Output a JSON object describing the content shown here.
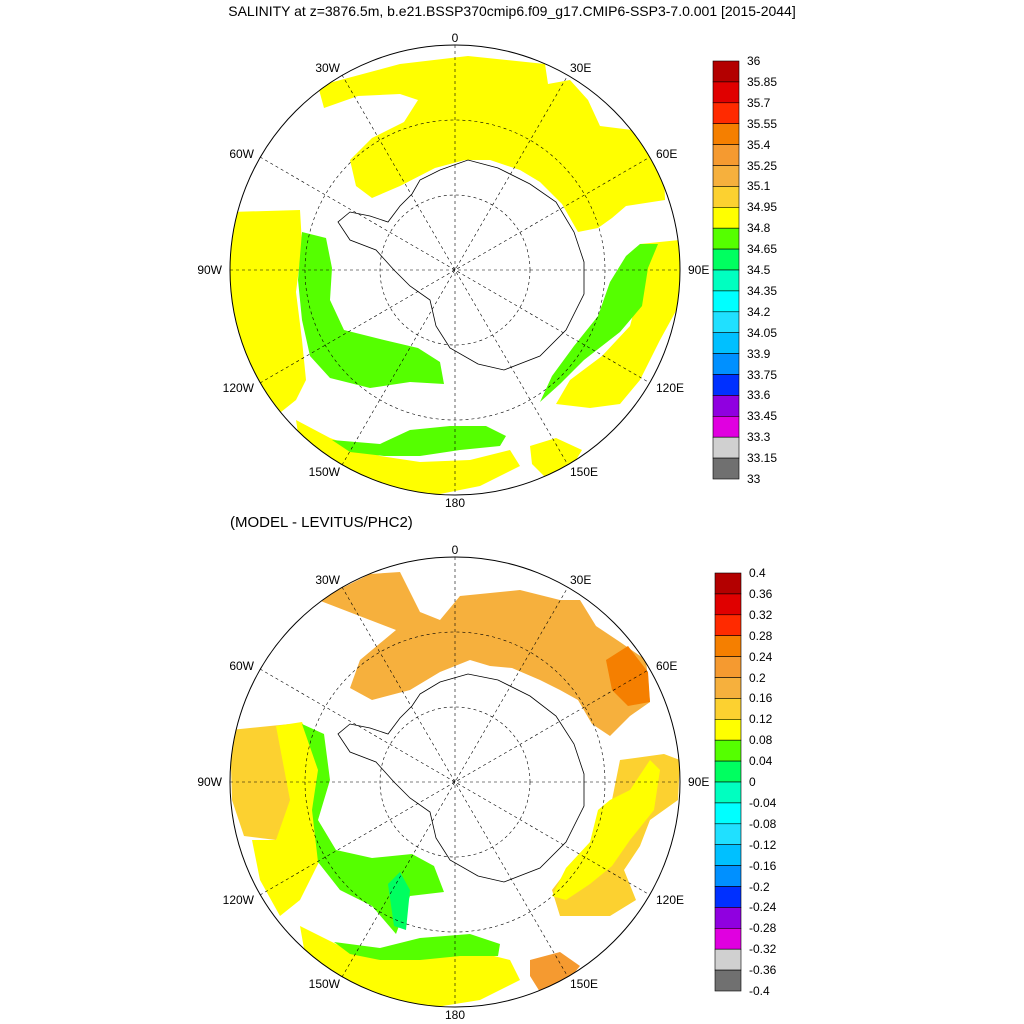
{
  "top_title": "SALINITY at z=3876.5m, b.e21.BSSP370cmip6.f09_g17.CMIP6-SSP3-7.0.001 [2015-2044]",
  "bottom_title": "(MODEL - LEVITUS/PHC2)",
  "longitude_labels": {
    "lon_0": "0",
    "lon_30w": "30W",
    "lon_30e": "30E",
    "lon_60w": "60W",
    "lon_60e": "60E",
    "lon_90w": "90W",
    "lon_90e": "90E",
    "lon_120w": "120W",
    "lon_120e": "120E",
    "lon_150w": "150W",
    "lon_150e": "150E",
    "lon_180": "180"
  },
  "colorbar_top": {
    "labels": [
      "36",
      "35.85",
      "35.7",
      "35.55",
      "35.4",
      "35.25",
      "35.1",
      "34.95",
      "34.8",
      "34.65",
      "34.5",
      "34.35",
      "34.2",
      "34.05",
      "33.9",
      "33.75",
      "33.6",
      "33.45",
      "33.3",
      "33.15",
      "33"
    ],
    "colors": [
      "#b30000",
      "#e00000",
      "#ff2a00",
      "#f57f00",
      "#f59a30",
      "#f6b03d",
      "#fcd130",
      "#ffff00",
      "#55ff00",
      "#00ff60",
      "#00ffc0",
      "#00ffff",
      "#20e0ff",
      "#00c0ff",
      "#0090ff",
      "#0030ff",
      "#9000e0",
      "#e000e0",
      "#d0d0d0",
      "#707070"
    ]
  },
  "colorbar_bottom": {
    "labels": [
      "0.4",
      "0.36",
      "0.32",
      "0.28",
      "0.24",
      "0.2",
      "0.16",
      "0.12",
      "0.08",
      "0.04",
      "0",
      "-0.04",
      "-0.08",
      "-0.12",
      "-0.16",
      "-0.2",
      "-0.24",
      "-0.28",
      "-0.32",
      "-0.36",
      "-0.4"
    ],
    "colors": [
      "#b30000",
      "#e00000",
      "#ff2a00",
      "#f57f00",
      "#f59a30",
      "#f6b03d",
      "#fcd130",
      "#ffff00",
      "#55ff00",
      "#00ff60",
      "#00ffc0",
      "#00ffff",
      "#20e0ff",
      "#00c0ff",
      "#0090ff",
      "#0030ff",
      "#9000e0",
      "#e000e0",
      "#d0d0d0",
      "#707070"
    ]
  },
  "field_colors": {
    "yellow": "#ffff00",
    "green": "#55ff00",
    "light_orange": "#f6b03d",
    "orange": "#f59a30",
    "deep_orange": "#f57f00",
    "gold": "#fcd130",
    "bright_green": "#00ff60"
  }
}
